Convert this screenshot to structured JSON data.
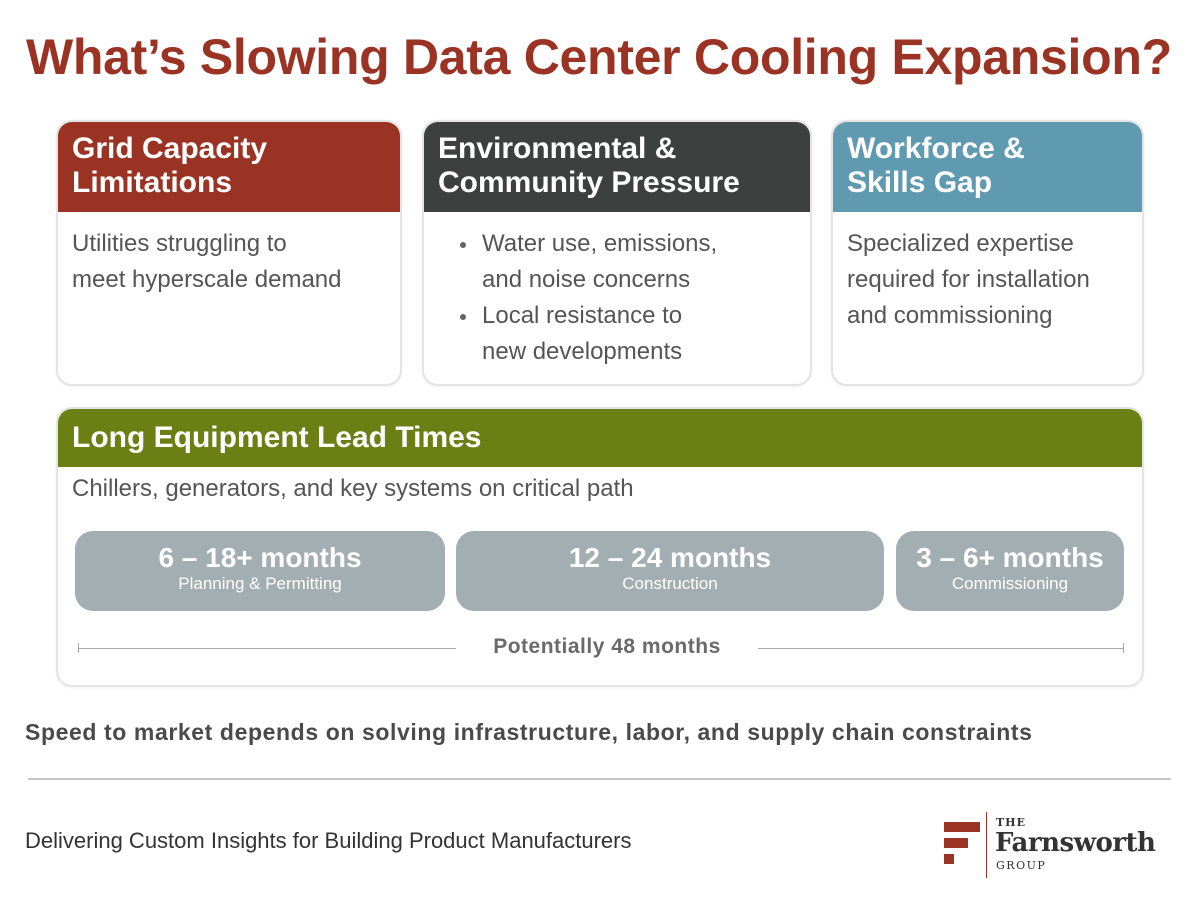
{
  "title": "What’s Slowing Data Center Cooling Expansion?",
  "colors": {
    "brand_red": "#9a3324",
    "dark_slate": "#3c4140",
    "teal": "#5f9ab0",
    "olive": "#6b7f14",
    "phase_gray": "#a3aeb3"
  },
  "cards": {
    "grid": {
      "title_line1": "Grid Capacity",
      "title_line2": "Limitations",
      "body_line1": "Utilities struggling to",
      "body_line2": "meet hyperscale demand"
    },
    "environment": {
      "title_line1": "Environmental &",
      "title_line2": "Community Pressure",
      "bullets": [
        {
          "line1": "Water use, emissions,",
          "line2": "and noise concerns"
        },
        {
          "line1": "Local resistance to",
          "line2": "new developments"
        }
      ]
    },
    "workforce": {
      "title_line1": "Workforce &",
      "title_line2": "Skills Gap",
      "body_line1": "Specialized expertise",
      "body_line2": "required for installation",
      "body_line3": "and commissioning"
    }
  },
  "lead_times": {
    "title": "Long Equipment Lead Times",
    "subtitle": "Chillers, generators, and key systems on critical path",
    "phases": [
      {
        "duration": "6 – 18+ months",
        "label": "Planning & Permitting"
      },
      {
        "duration": "12 – 24 months",
        "label": "Construction"
      },
      {
        "duration": "3 – 6+ months",
        "label": "Commissioning"
      }
    ],
    "total": "Potentially 48 months"
  },
  "takeaway": "Speed to market depends on solving infrastructure, labor, and supply chain constraints",
  "footer": {
    "tagline": "Delivering Custom Insights for Building Product Manufacturers",
    "logo": {
      "the": "THE",
      "name": "Farnsworth",
      "group": "GROUP"
    }
  }
}
